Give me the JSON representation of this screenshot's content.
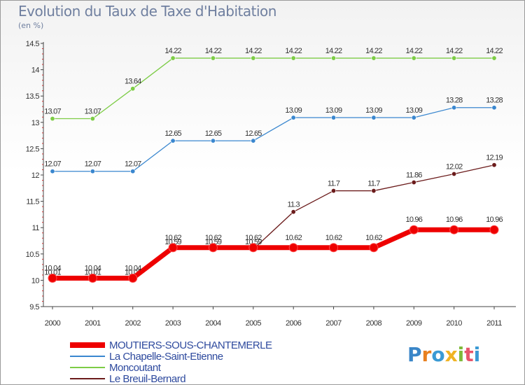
{
  "title": "Evolution du Taux de Taxe d'Habitation",
  "subtitle": "(en %)",
  "logo": {
    "letters": [
      "P",
      "r",
      "o",
      "x",
      "i",
      "t",
      "i"
    ],
    "colors": [
      "#3a86c8",
      "#e8801f",
      "#3a9ad4",
      "#f0b323",
      "#7fba3a",
      "#e8556a",
      "#3a9ad4"
    ]
  },
  "chart_data": {
    "type": "line",
    "x": [
      "2000",
      "2001",
      "2002",
      "2003",
      "2004",
      "2005",
      "2006",
      "2007",
      "2008",
      "2009",
      "2010",
      "2011"
    ],
    "ylim": [
      9.5,
      14.5
    ],
    "yticks": [
      "9.5",
      "10",
      "10.5",
      "11",
      "11.5",
      "12",
      "12.5",
      "13",
      "13.5",
      "14",
      "14.5"
    ],
    "grid": false,
    "legend_position": "bottom-left",
    "series": [
      {
        "name": "Le Breuil-Bernard",
        "color": "#6b1b1b",
        "values": [
          10.01,
          10.01,
          10.01,
          10.59,
          10.59,
          10.59,
          11.3,
          11.7,
          11.7,
          11.86,
          12.02,
          12.19
        ],
        "labels": [
          "10.01",
          "10.01",
          "10.01",
          "10.59",
          "10.59",
          "10.59",
          "11.3",
          "11.7",
          "11.7",
          "11.86",
          "12.02",
          "12.19"
        ]
      },
      {
        "name": "La Chapelle-Saint-Etienne",
        "color": "#3a87cf",
        "values": [
          12.07,
          12.07,
          12.07,
          12.65,
          12.65,
          12.65,
          13.09,
          13.09,
          13.09,
          13.09,
          13.28,
          13.28
        ],
        "labels": [
          "12.07",
          "12.07",
          "12.07",
          "12.65",
          "12.65",
          "12.65",
          "13.09",
          "13.09",
          "13.09",
          "13.09",
          "13.28",
          "13.28"
        ]
      },
      {
        "name": "Moncoutant",
        "color": "#7dcc46",
        "values": [
          13.07,
          13.07,
          13.64,
          14.22,
          14.22,
          14.22,
          14.22,
          14.22,
          14.22,
          14.22,
          14.22,
          14.22
        ],
        "labels": [
          "13.07",
          "13.07",
          "13.64",
          "14.22",
          "14.22",
          "14.22",
          "14.22",
          "14.22",
          "14.22",
          "14.22",
          "14.22",
          "14.22"
        ]
      },
      {
        "name": "MOUTIERS-SOUS-CHANTEMERLE",
        "color": "#ee0000",
        "values": [
          10.04,
          10.04,
          10.04,
          10.62,
          10.62,
          10.62,
          10.62,
          10.62,
          10.62,
          10.96,
          10.96,
          10.96
        ],
        "labels": [
          "10.04",
          "10.04",
          "10.04",
          "10.62",
          "10.62",
          "10.62",
          "10.62",
          "10.62",
          "10.62",
          "10.96",
          "10.96",
          "10.96"
        ],
        "emphasis": true
      }
    ],
    "legend_order": [
      "MOUTIERS-SOUS-CHANTEMERLE",
      "La Chapelle-Saint-Etienne",
      "Moncoutant",
      "Le Breuil-Bernard"
    ]
  }
}
